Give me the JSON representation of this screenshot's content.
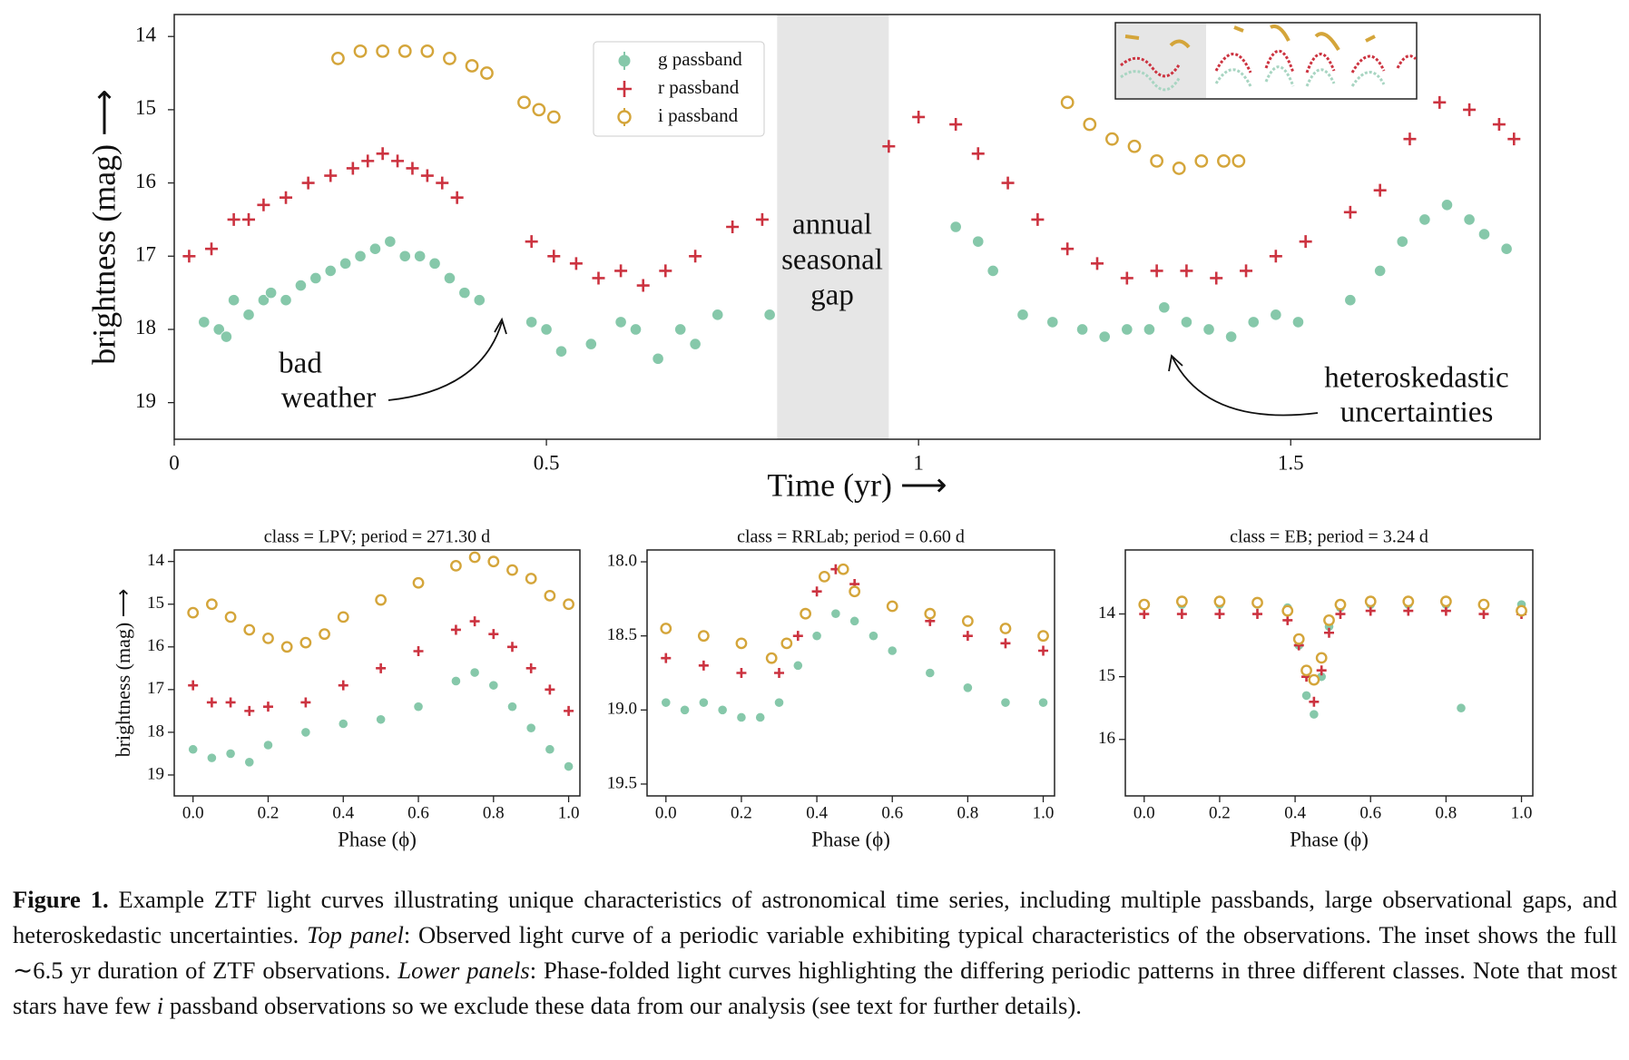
{
  "chart_data": [
    {
      "type": "scatter",
      "xlabel": "Time (yr) ⟶",
      "ylabel": "brightness (mag) ⟶",
      "xlim": [
        0,
        1.835
      ],
      "ylim": [
        19.5,
        13.7
      ],
      "xticks": [
        0,
        0.5,
        1,
        1.5
      ],
      "yticks": [
        14,
        15,
        16,
        17,
        18,
        19
      ],
      "shaded_span": [
        0.81,
        0.96
      ],
      "legend": "top",
      "annotations": [
        [
          "bad",
          "weather"
        ],
        [
          "annual",
          "seasonal",
          "gap"
        ],
        [
          "heteroskedastic",
          "uncertainties"
        ]
      ],
      "series": [
        {
          "name": "g passband",
          "color": "#86c8aa",
          "marker": "dot",
          "x": [
            0.04,
            0.06,
            0.07,
            0.08,
            0.1,
            0.12,
            0.13,
            0.15,
            0.17,
            0.19,
            0.21,
            0.23,
            0.25,
            0.27,
            0.29,
            0.31,
            0.33,
            0.35,
            0.37,
            0.39,
            0.41,
            0.48,
            0.5,
            0.52,
            0.56,
            0.6,
            0.62,
            0.65,
            0.68,
            0.7,
            0.73,
            0.8,
            1.05,
            1.08,
            1.1,
            1.14,
            1.18,
            1.22,
            1.25,
            1.28,
            1.31,
            1.33,
            1.36,
            1.39,
            1.42,
            1.45,
            1.48,
            1.51,
            1.58,
            1.62,
            1.65,
            1.68,
            1.71,
            1.74,
            1.76,
            1.79
          ],
          "values": [
            17.9,
            18.0,
            18.1,
            17.6,
            17.8,
            17.6,
            17.5,
            17.6,
            17.4,
            17.3,
            17.2,
            17.1,
            17.0,
            16.9,
            16.8,
            17.0,
            17.0,
            17.1,
            17.3,
            17.5,
            17.6,
            17.9,
            18.0,
            18.3,
            18.2,
            17.9,
            18.0,
            18.4,
            18.0,
            18.2,
            17.8,
            17.8,
            16.6,
            16.8,
            17.2,
            17.8,
            17.9,
            18.0,
            18.1,
            18.0,
            18.0,
            17.7,
            17.9,
            18.0,
            18.1,
            17.9,
            17.8,
            17.9,
            17.6,
            17.2,
            16.8,
            16.5,
            16.3,
            16.5,
            16.7,
            16.9
          ]
        },
        {
          "name": "r passband",
          "color": "#cc3340",
          "marker": "plus",
          "x": [
            0.02,
            0.05,
            0.08,
            0.1,
            0.12,
            0.15,
            0.18,
            0.21,
            0.24,
            0.26,
            0.28,
            0.3,
            0.32,
            0.34,
            0.36,
            0.38,
            0.48,
            0.51,
            0.54,
            0.57,
            0.6,
            0.63,
            0.66,
            0.7,
            0.75,
            0.79,
            0.96,
            1.0,
            1.05,
            1.08,
            1.12,
            1.16,
            1.2,
            1.24,
            1.28,
            1.32,
            1.36,
            1.4,
            1.44,
            1.48,
            1.52,
            1.58,
            1.62,
            1.66,
            1.7,
            1.74,
            1.78,
            1.8
          ],
          "values": [
            17.0,
            16.9,
            16.5,
            16.5,
            16.3,
            16.2,
            16.0,
            15.9,
            15.8,
            15.7,
            15.6,
            15.7,
            15.8,
            15.9,
            16.0,
            16.2,
            16.8,
            17.0,
            17.1,
            17.3,
            17.2,
            17.4,
            17.2,
            17.0,
            16.6,
            16.5,
            15.5,
            15.1,
            15.2,
            15.6,
            16.0,
            16.5,
            16.9,
            17.1,
            17.3,
            17.2,
            17.2,
            17.3,
            17.2,
            17.0,
            16.8,
            16.4,
            16.1,
            15.4,
            14.9,
            15.0,
            15.2,
            15.4
          ]
        },
        {
          "name": "i passband",
          "color": "#d4a53a",
          "marker": "open",
          "x": [
            0.22,
            0.25,
            0.28,
            0.31,
            0.34,
            0.37,
            0.4,
            0.42,
            0.47,
            0.49,
            0.51,
            1.2,
            1.23,
            1.26,
            1.29,
            1.32,
            1.35,
            1.38,
            1.41,
            1.43
          ],
          "values": [
            14.3,
            14.2,
            14.2,
            14.2,
            14.2,
            14.3,
            14.4,
            14.5,
            14.9,
            15.0,
            15.1,
            14.9,
            15.2,
            15.4,
            15.5,
            15.7,
            15.8,
            15.7,
            15.7,
            15.7
          ]
        }
      ]
    },
    {
      "type": "scatter",
      "title": "class  =  LPV; period = 271.30 d",
      "xlabel": "Phase (ϕ)",
      "ylabel": "brightness (mag) ⟶",
      "xlim": [
        -0.05,
        1.03
      ],
      "ylim": [
        19.49,
        13.73
      ],
      "xticks": [
        {
          "value": 0,
          "label": "0.0"
        },
        0.2,
        0.4,
        0.6,
        0.8,
        {
          "value": 1,
          "label": "1.0"
        }
      ],
      "yticks": [
        14,
        15,
        16,
        17,
        18,
        19
      ],
      "series": [
        {
          "color": "#86c8aa",
          "marker": "dot",
          "x": [
            0,
            0.05,
            0.1,
            0.15,
            0.2,
            0.3,
            0.4,
            0.5,
            0.6,
            0.7,
            0.75,
            0.8,
            0.85,
            0.9,
            0.95,
            1.0
          ],
          "values": [
            18.4,
            18.6,
            18.5,
            18.7,
            18.3,
            18.0,
            17.8,
            17.7,
            17.4,
            16.8,
            16.6,
            16.9,
            17.4,
            17.9,
            18.4,
            18.8
          ]
        },
        {
          "color": "#cc3340",
          "marker": "plus",
          "x": [
            0,
            0.05,
            0.1,
            0.15,
            0.2,
            0.3,
            0.4,
            0.5,
            0.6,
            0.7,
            0.75,
            0.8,
            0.85,
            0.9,
            0.95,
            1.0
          ],
          "values": [
            16.9,
            17.3,
            17.3,
            17.5,
            17.4,
            17.3,
            16.9,
            16.5,
            16.1,
            15.6,
            15.4,
            15.7,
            16.0,
            16.5,
            17.0,
            17.5
          ]
        },
        {
          "color": "#d4a53a",
          "marker": "open",
          "x": [
            0,
            0.05,
            0.1,
            0.15,
            0.2,
            0.25,
            0.3,
            0.35,
            0.4,
            0.5,
            0.6,
            0.7,
            0.75,
            0.8,
            0.85,
            0.9,
            0.95,
            1.0
          ],
          "values": [
            15.2,
            15.0,
            15.3,
            15.6,
            15.8,
            16.0,
            15.9,
            15.7,
            15.3,
            14.9,
            14.5,
            14.1,
            13.9,
            14.0,
            14.2,
            14.4,
            14.8,
            15.0
          ]
        }
      ]
    },
    {
      "type": "scatter",
      "title": "class  =  RRLab; period = 0.60 d",
      "xlabel": "Phase (ϕ)",
      "xlim": [
        -0.05,
        1.03
      ],
      "ylim": [
        19.58,
        17.92
      ],
      "xticks": [
        {
          "value": 0,
          "label": "0.0"
        },
        0.2,
        0.4,
        0.6,
        0.8,
        {
          "value": 1,
          "label": "1.0"
        }
      ],
      "yticks": [
        {
          "value": 18,
          "label": "18.0"
        },
        18.5,
        {
          "value": 19,
          "label": "19.0"
        },
        19.5
      ],
      "series": [
        {
          "color": "#86c8aa",
          "marker": "dot",
          "x": [
            0,
            0.05,
            0.1,
            0.15,
            0.2,
            0.25,
            0.3,
            0.35,
            0.4,
            0.45,
            0.5,
            0.55,
            0.6,
            0.7,
            0.8,
            0.9,
            1.0
          ],
          "values": [
            18.95,
            19.0,
            18.95,
            19.0,
            19.05,
            19.05,
            18.95,
            18.7,
            18.5,
            18.35,
            18.4,
            18.5,
            18.6,
            18.75,
            18.85,
            18.95,
            18.95
          ]
        },
        {
          "color": "#cc3340",
          "marker": "plus",
          "x": [
            0,
            0.1,
            0.2,
            0.3,
            0.35,
            0.4,
            0.45,
            0.5,
            0.6,
            0.7,
            0.8,
            0.9,
            1.0
          ],
          "values": [
            18.65,
            18.7,
            18.75,
            18.75,
            18.5,
            18.2,
            18.05,
            18.15,
            18.3,
            18.4,
            18.5,
            18.55,
            18.6
          ]
        },
        {
          "color": "#d4a53a",
          "marker": "open",
          "x": [
            0,
            0.1,
            0.2,
            0.28,
            0.32,
            0.37,
            0.42,
            0.47,
            0.5,
            0.6,
            0.7,
            0.8,
            0.9,
            1.0
          ],
          "values": [
            18.45,
            18.5,
            18.55,
            18.65,
            18.55,
            18.35,
            18.1,
            18.05,
            18.2,
            18.3,
            18.35,
            18.4,
            18.45,
            18.5
          ]
        }
      ]
    },
    {
      "type": "scatter",
      "title": "class  =  EB; period = 3.24 d",
      "xlabel": "Phase (ϕ)",
      "xlim": [
        -0.05,
        1.03
      ],
      "ylim": [
        16.9,
        12.98
      ],
      "xticks": [
        {
          "value": 0,
          "label": "0.0"
        },
        0.2,
        0.4,
        0.6,
        0.8,
        {
          "value": 1,
          "label": "1.0"
        }
      ],
      "yticks": [
        14,
        15,
        16
      ],
      "series": [
        {
          "color": "#86c8aa",
          "marker": "dot",
          "x": [
            0,
            0.1,
            0.2,
            0.3,
            0.38,
            0.41,
            0.43,
            0.45,
            0.47,
            0.49,
            0.52,
            0.6,
            0.7,
            0.8,
            0.84,
            0.9,
            1.0
          ],
          "values": [
            13.85,
            13.85,
            13.85,
            13.85,
            13.9,
            14.5,
            15.3,
            15.6,
            15.0,
            14.2,
            13.9,
            13.85,
            13.85,
            13.85,
            15.5,
            13.85,
            13.85
          ]
        },
        {
          "color": "#cc3340",
          "marker": "plus",
          "x": [
            0,
            0.1,
            0.2,
            0.3,
            0.38,
            0.41,
            0.43,
            0.45,
            0.47,
            0.49,
            0.52,
            0.6,
            0.7,
            0.8,
            0.9,
            1.0
          ],
          "values": [
            14.0,
            14.0,
            14.0,
            14.0,
            14.1,
            14.5,
            15.0,
            15.4,
            14.9,
            14.3,
            14.0,
            13.95,
            13.95,
            13.95,
            14.0,
            14.0
          ]
        },
        {
          "color": "#d4a53a",
          "marker": "open",
          "x": [
            0,
            0.1,
            0.2,
            0.3,
            0.38,
            0.41,
            0.43,
            0.45,
            0.47,
            0.49,
            0.52,
            0.6,
            0.7,
            0.8,
            0.9,
            1.0
          ],
          "values": [
            13.85,
            13.8,
            13.8,
            13.82,
            13.95,
            14.4,
            14.9,
            15.05,
            14.7,
            14.1,
            13.85,
            13.8,
            13.8,
            13.8,
            13.85,
            13.95
          ]
        }
      ]
    }
  ],
  "caption": {
    "label": "Figure 1.",
    "parts": [
      "Example ZTF light curves illustrating unique characteristics of astronomical time series, including multiple passbands, large observational gaps, and heteroskedastic uncertainties.",
      "Top panel",
      ": Observed light curve of a periodic variable exhibiting typical characteristics of the observations.  The inset shows the full ∼6.5 yr duration of ZTF observations.",
      "Lower panels",
      ": Phase-folded light curves highlighting the differing periodic patterns in three different classes. Note that most stars have few",
      "i",
      "passband observations so we exclude these data from our analysis (see text for further details)."
    ]
  }
}
